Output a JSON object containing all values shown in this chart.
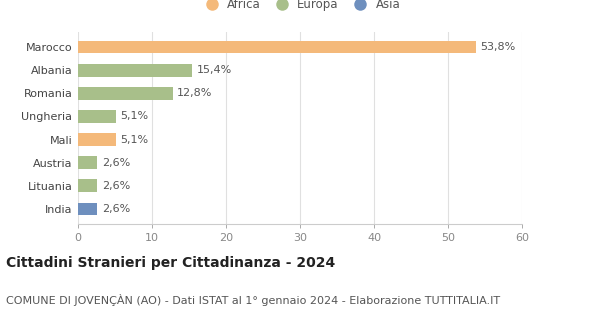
{
  "categories": [
    "India",
    "Lituania",
    "Austria",
    "Mali",
    "Ungheria",
    "Romania",
    "Albania",
    "Marocco"
  ],
  "values": [
    2.6,
    2.6,
    2.6,
    5.1,
    5.1,
    12.8,
    15.4,
    53.8
  ],
  "labels": [
    "2,6%",
    "2,6%",
    "2,6%",
    "5,1%",
    "5,1%",
    "12,8%",
    "15,4%",
    "53,8%"
  ],
  "colors": [
    "#6e8fbe",
    "#a8bf8a",
    "#a8bf8a",
    "#f4b97a",
    "#a8bf8a",
    "#a8bf8a",
    "#a8bf8a",
    "#f4b97a"
  ],
  "continent_colors": {
    "Africa": "#f4b97a",
    "Europa": "#a8bf8a",
    "Asia": "#6e8fbe"
  },
  "legend_labels": [
    "Africa",
    "Europa",
    "Asia"
  ],
  "xlim": [
    0,
    60
  ],
  "xticks": [
    0,
    10,
    20,
    30,
    40,
    50,
    60
  ],
  "title": "Cittadini Stranieri per Cittadinanza - 2024",
  "subtitle": "COMUNE DI JOVENÇÀN (AO) - Dati ISTAT al 1° gennaio 2024 - Elaborazione TUTTITALIA.IT",
  "bar_height": 0.55,
  "background_color": "#ffffff",
  "title_fontsize": 10,
  "subtitle_fontsize": 8,
  "label_fontsize": 8,
  "tick_fontsize": 8,
  "legend_fontsize": 8.5
}
